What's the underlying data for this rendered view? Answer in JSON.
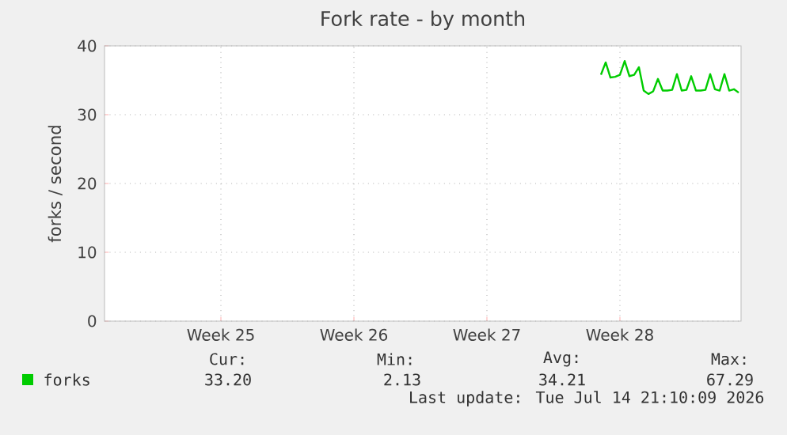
{
  "chart_data": {
    "type": "line",
    "title": "Fork rate - by month",
    "ylabel": "forks / second",
    "categories": [
      null,
      null,
      null,
      null,
      null,
      null,
      null,
      null,
      null,
      null,
      null,
      null,
      null,
      null,
      null,
      null,
      null,
      null,
      null,
      null,
      null,
      null,
      null,
      null,
      "Week 25",
      null,
      null,
      null,
      null,
      null,
      null,
      null,
      null,
      null,
      null,
      null,
      null,
      null,
      null,
      null,
      null,
      null,
      null,
      null,
      null,
      null,
      null,
      null,
      null,
      null,
      null,
      null,
      "Week 26",
      null,
      null,
      null,
      null,
      null,
      null,
      null,
      null,
      null,
      null,
      null,
      null,
      null,
      null,
      null,
      null,
      null,
      null,
      null,
      null,
      null,
      null,
      null,
      null,
      null,
      null,
      null,
      "Week 27",
      null,
      null,
      null,
      null,
      null,
      null,
      null,
      null,
      null,
      null,
      null,
      null,
      null,
      null,
      null,
      null,
      null,
      null,
      null,
      null,
      null,
      null,
      null,
      null,
      null,
      null,
      null,
      "Week 28",
      null,
      null,
      null,
      null,
      null,
      null,
      null,
      null,
      null,
      null,
      null,
      null,
      null,
      null,
      null,
      null,
      null,
      null,
      null,
      null,
      null,
      null,
      null,
      null,
      null
    ],
    "ylim": [
      0,
      40
    ],
    "yticks": [
      0,
      10,
      20,
      30,
      40
    ],
    "grid": true,
    "legend": "bottom left",
    "marker": "none",
    "line_style": "solid",
    "series": [
      {
        "name": "forks",
        "color": "#00cc00",
        "values": [
          null,
          null,
          null,
          null,
          null,
          null,
          null,
          null,
          null,
          null,
          null,
          null,
          null,
          null,
          null,
          null,
          null,
          null,
          null,
          null,
          null,
          null,
          null,
          null,
          null,
          null,
          null,
          null,
          null,
          null,
          null,
          null,
          null,
          null,
          null,
          null,
          null,
          null,
          null,
          null,
          null,
          null,
          null,
          null,
          null,
          null,
          null,
          null,
          null,
          null,
          null,
          null,
          null,
          null,
          null,
          null,
          null,
          null,
          null,
          null,
          null,
          null,
          null,
          null,
          null,
          null,
          null,
          null,
          null,
          null,
          null,
          null,
          null,
          null,
          null,
          null,
          null,
          null,
          null,
          null,
          null,
          null,
          null,
          null,
          null,
          null,
          null,
          null,
          null,
          null,
          null,
          null,
          null,
          null,
          null,
          null,
          null,
          null,
          null,
          null,
          null,
          null,
          null,
          null,
          35.8,
          37.6,
          35.4,
          35.5,
          35.8,
          37.8,
          35.6,
          35.8,
          36.9,
          33.5,
          33.0,
          33.4,
          35.2,
          33.5,
          33.5,
          33.6,
          35.9,
          33.5,
          33.6,
          35.6,
          33.5,
          33.5,
          33.6,
          35.9,
          33.7,
          33.5,
          35.9,
          33.5,
          33.7,
          33.2
        ]
      }
    ],
    "annotations": [
      "Cur:",
      "33.20",
      "Min:",
      "2.13",
      "Avg:",
      "34.21",
      "Max:",
      "67.29",
      "Last update: Tue Jul 14 21:10:09 2026"
    ]
  }
}
